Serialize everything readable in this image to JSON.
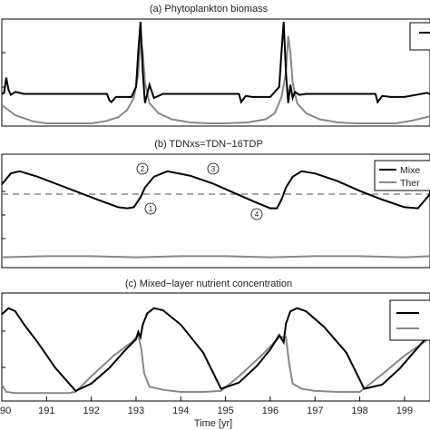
{
  "chart_data": [
    {
      "type": "line",
      "title": "(a) Phytoplankton biomass",
      "xlim": [
        190,
        200
      ],
      "ylim": [
        0,
        1
      ],
      "legend": {
        "placement": "top-right",
        "entries": [
          "",
          ""
        ]
      },
      "series": [
        {
          "color": "#000000",
          "x": [
            190.0,
            190.05,
            190.1,
            190.15,
            190.2,
            190.3,
            190.5,
            191.0,
            191.5,
            192.0,
            192.35,
            192.4,
            192.45,
            192.55,
            192.7,
            192.9,
            193.0,
            193.05,
            193.1,
            193.15,
            193.2,
            193.3,
            193.4,
            193.6,
            194.0,
            194.5,
            195.0,
            195.3,
            195.35,
            195.45,
            195.6,
            196.0,
            196.2,
            196.25,
            196.3,
            196.35,
            196.4,
            196.45,
            196.5,
            196.55,
            196.65,
            196.8,
            197.0,
            197.5,
            198.0,
            198.35,
            198.4,
            198.5,
            198.7,
            199.0,
            199.5,
            200.0
          ],
          "y": [
            0.29,
            0.3,
            0.45,
            0.33,
            0.28,
            0.31,
            0.29,
            0.29,
            0.29,
            0.29,
            0.29,
            0.23,
            0.21,
            0.26,
            0.26,
            0.26,
            0.36,
            0.7,
            1.0,
            0.5,
            0.2,
            0.38,
            0.25,
            0.29,
            0.29,
            0.29,
            0.29,
            0.29,
            0.21,
            0.27,
            0.26,
            0.26,
            0.36,
            0.7,
            1.0,
            0.5,
            0.2,
            0.38,
            0.25,
            0.31,
            0.28,
            0.29,
            0.29,
            0.29,
            0.29,
            0.29,
            0.21,
            0.27,
            0.26,
            0.26,
            0.3,
            0.29
          ]
        },
        {
          "color": "#888888",
          "x": [
            190.0,
            190.3,
            190.7,
            191.0,
            191.5,
            192.0,
            192.3,
            192.6,
            192.8,
            192.95,
            193.05,
            193.1,
            193.15,
            193.2,
            193.3,
            193.5,
            193.8,
            194.2,
            194.6,
            195.0,
            195.5,
            195.9,
            196.1,
            196.25,
            196.35,
            196.4,
            196.45,
            196.5,
            196.6,
            196.8,
            197.1,
            197.5,
            197.9,
            198.3,
            198.8,
            199.2,
            199.6,
            200.0
          ],
          "y": [
            0.18,
            0.08,
            0.02,
            0.0,
            0.0,
            0.0,
            0.02,
            0.06,
            0.13,
            0.25,
            0.48,
            0.86,
            0.7,
            0.4,
            0.2,
            0.1,
            0.04,
            0.01,
            0.0,
            0.0,
            0.01,
            0.04,
            0.1,
            0.26,
            0.5,
            0.86,
            0.7,
            0.4,
            0.2,
            0.1,
            0.04,
            0.01,
            0.0,
            0.0,
            0.0,
            0.03,
            0.07,
            0.1
          ]
        }
      ]
    },
    {
      "type": "line",
      "title": "(b) TDNxs=TDN−16TDP",
      "xlim": [
        190,
        200
      ],
      "ylim": [
        0,
        1
      ],
      "legend": {
        "placement": "top-right",
        "entries": [
          "Mixe",
          "Ther"
        ]
      },
      "annotations": [
        "2",
        "3",
        "1",
        "4"
      ],
      "series": [
        {
          "color": "#000000",
          "x": [
            190.0,
            190.2,
            190.4,
            190.8,
            191.5,
            192.2,
            192.6,
            192.8,
            192.95,
            193.1,
            193.2,
            193.4,
            193.7,
            194.2,
            194.7,
            195.2,
            195.7,
            196.0,
            196.15,
            196.25,
            196.35,
            196.5,
            196.7,
            197.0,
            197.5,
            198.0,
            198.5,
            199.0,
            199.3,
            199.6,
            200.0
          ],
          "y": [
            0.74,
            0.84,
            0.86,
            0.81,
            0.7,
            0.59,
            0.53,
            0.52,
            0.53,
            0.62,
            0.71,
            0.81,
            0.86,
            0.82,
            0.75,
            0.66,
            0.57,
            0.52,
            0.52,
            0.6,
            0.71,
            0.81,
            0.86,
            0.84,
            0.77,
            0.68,
            0.6,
            0.53,
            0.52,
            0.65,
            0.8
          ]
        },
        {
          "color": "#888888",
          "x": [
            190.0,
            191.0,
            192.0,
            193.0,
            194.0,
            195.0,
            196.0,
            197.0,
            198.0,
            199.0,
            200.0
          ],
          "y": [
            0.07,
            0.08,
            0.08,
            0.07,
            0.08,
            0.08,
            0.07,
            0.08,
            0.08,
            0.07,
            0.08
          ]
        },
        {
          "color": "#888888",
          "dash": true,
          "x": [
            190.0,
            200.0
          ],
          "y": [
            0.65,
            0.65
          ]
        }
      ]
    },
    {
      "type": "line",
      "title": "(c) Mixed−layer nutrient concentration",
      "xlabel": "Time [yr]",
      "xlim": [
        190,
        200
      ],
      "ylim": [
        0,
        1
      ],
      "xticks": [
        "90",
        "191",
        "192",
        "193",
        "194",
        "195",
        "196",
        "197",
        "198",
        "199",
        "2"
      ],
      "legend": {
        "placement": "right",
        "entries": [
          "",
          ""
        ]
      },
      "series": [
        {
          "color": "#000000",
          "x": [
            190.0,
            190.15,
            190.3,
            190.5,
            190.8,
            191.2,
            191.65,
            192.0,
            192.4,
            192.75,
            193.0,
            193.05,
            193.1,
            193.15,
            193.25,
            193.4,
            193.6,
            194.0,
            194.5,
            194.9,
            195.3,
            195.7,
            196.0,
            196.2,
            196.3,
            196.35,
            196.45,
            196.6,
            196.8,
            197.2,
            197.7,
            198.1,
            198.5,
            198.9,
            199.2,
            199.5,
            199.7,
            200.0
          ],
          "y": [
            0.82,
            0.88,
            0.85,
            0.72,
            0.55,
            0.3,
            0.08,
            0.15,
            0.3,
            0.47,
            0.58,
            0.65,
            0.6,
            0.72,
            0.83,
            0.88,
            0.86,
            0.72,
            0.45,
            0.1,
            0.16,
            0.32,
            0.48,
            0.62,
            0.55,
            0.73,
            0.85,
            0.88,
            0.85,
            0.7,
            0.45,
            0.1,
            0.14,
            0.3,
            0.45,
            0.6,
            0.75,
            0.82
          ]
        },
        {
          "color": "#888888",
          "x": [
            190.0,
            190.1,
            190.3,
            190.6,
            191.0,
            191.5,
            191.65,
            192.0,
            192.5,
            192.9,
            193.05,
            193.12,
            193.18,
            193.3,
            193.6,
            194.0,
            194.5,
            194.9,
            195.3,
            195.8,
            196.2,
            196.35,
            196.42,
            196.5,
            196.7,
            197.0,
            197.5,
            198.0,
            198.5,
            199.0,
            199.5,
            200.0
          ],
          "y": [
            0.14,
            0.07,
            0.06,
            0.06,
            0.06,
            0.06,
            0.07,
            0.22,
            0.42,
            0.55,
            0.62,
            0.48,
            0.25,
            0.12,
            0.09,
            0.07,
            0.07,
            0.08,
            0.22,
            0.42,
            0.6,
            0.6,
            0.35,
            0.15,
            0.1,
            0.08,
            0.07,
            0.07,
            0.24,
            0.42,
            0.57,
            0.64
          ]
        }
      ]
    }
  ]
}
